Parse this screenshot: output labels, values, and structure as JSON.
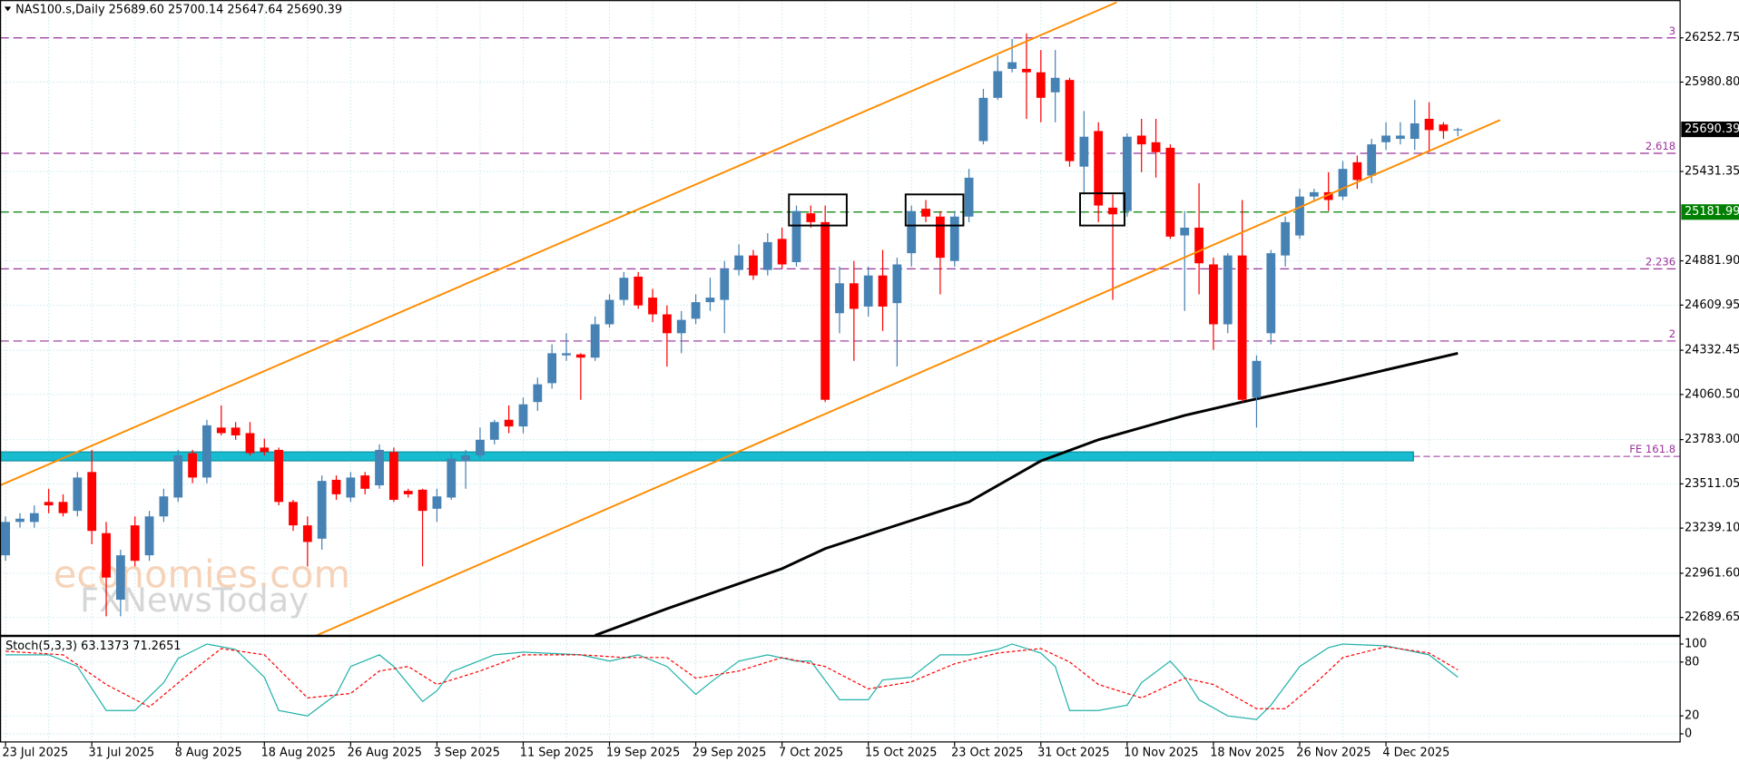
{
  "chart_data": [
    {
      "type": "candlestick",
      "title": "NAS100.s,Daily  25689.60 25700.14 25647.64 25690.39",
      "categories": [
        "23 Jul 2025",
        null,
        null,
        null,
        null,
        null,
        "31 Jul 2025",
        null,
        null,
        null,
        null,
        null,
        "8 Aug 2025",
        null,
        null,
        null,
        null,
        null,
        "18 Aug 2025",
        null,
        null,
        null,
        null,
        null,
        "26 Aug 2025",
        null,
        null,
        null,
        null,
        null,
        "3 Sep 2025",
        null,
        null,
        null,
        null,
        null,
        "11 Sep 2025",
        null,
        null,
        null,
        null,
        null,
        "19 Sep 2025",
        null,
        null,
        null,
        null,
        null,
        "29 Sep 2025",
        null,
        null,
        null,
        null,
        null,
        "7 Oct 2025",
        null,
        null,
        null,
        null,
        null,
        "15 Oct 2025",
        null,
        null,
        null,
        null,
        null,
        "23 Oct 2025",
        null,
        null,
        null,
        null,
        null,
        "31 Oct 2025",
        null,
        null,
        null,
        null,
        null,
        "10 Nov 2025",
        null,
        null,
        null,
        null,
        null,
        "18 Nov 2025",
        null,
        null,
        null,
        null,
        null,
        "26 Nov 2025",
        null,
        null,
        null,
        null,
        null,
        "4 Dec 2025",
        null,
        null,
        null,
        null,
        null
      ],
      "open": [
        23072,
        23277,
        23277,
        23400,
        23400,
        23345,
        23584,
        23208,
        22799,
        23256,
        23072,
        23311,
        23427,
        23700,
        23550,
        23857,
        23857,
        23823,
        23734,
        23720,
        23400,
        23256,
        23174,
        23536,
        23427,
        23563,
        23502,
        23707,
        23468,
        23475,
        23358,
        23427,
        23652,
        23686,
        23782,
        23905,
        23864,
        24014,
        24130,
        24301,
        24307,
        24287,
        24492,
        24642,
        24785,
        24656,
        24553,
        24437,
        24526,
        24628,
        24642,
        24826,
        24915,
        24826,
        25017,
        24874,
        25174,
        25120,
        24560,
        24744,
        24601,
        24792,
        24622,
        24929,
        25202,
        25154,
        24881,
        25154,
        25618,
        25884,
        26062,
        26062,
        26041,
        25918,
        25994,
        25461,
        25680,
        25209,
        25188,
        25652,
        25611,
        25577,
        25038,
        25086,
        24860,
        24492,
        24915,
        24041,
        24437,
        24915,
        25038,
        25277,
        25304,
        25277,
        25488,
        25406,
        25611,
        25632,
        25632,
        25755,
        25720,
        25689.6
      ],
      "high": [
        23311,
        23331,
        23379,
        23481,
        23447,
        23584,
        23720,
        23277,
        23106,
        23311,
        23345,
        23481,
        23720,
        23720,
        23905,
        23993,
        23891,
        23891,
        23789,
        23734,
        23413,
        23311,
        23563,
        23563,
        23584,
        23584,
        23754,
        23734,
        23481,
        23481,
        23481,
        23700,
        23720,
        23857,
        23905,
        23993,
        24041,
        24164,
        24369,
        24437,
        24314,
        24540,
        24676,
        24813,
        24813,
        24710,
        24608,
        24574,
        24676,
        24778,
        24881,
        24983,
        24949,
        25052,
        25086,
        25222,
        25222,
        25222,
        24847,
        24881,
        24847,
        24949,
        24901,
        25222,
        25256,
        25188,
        25188,
        25447,
        25939,
        26144,
        26246,
        26280,
        26178,
        26178,
        26007,
        25802,
        25734,
        25290,
        25666,
        25755,
        25755,
        25598,
        25188,
        25359,
        24901,
        24929,
        25256,
        24301,
        24949,
        25154,
        25325,
        25325,
        25427,
        25495,
        25529,
        25632,
        25734,
        25734,
        25871,
        25857,
        25734,
        25700.14
      ],
      "low": [
        23038,
        23242,
        23242,
        23331,
        23311,
        23311,
        23140,
        22697,
        22697,
        23004,
        23038,
        23277,
        23400,
        23515,
        23515,
        23809,
        23782,
        23686,
        23686,
        23379,
        23222,
        23004,
        23106,
        23413,
        23400,
        23447,
        23481,
        23400,
        23427,
        23004,
        23277,
        23413,
        23481,
        23666,
        23754,
        23823,
        23823,
        23959,
        24096,
        24267,
        24028,
        24267,
        24471,
        24608,
        24587,
        24505,
        24232,
        24314,
        24492,
        24574,
        24437,
        24792,
        24765,
        24792,
        24833,
        24847,
        25086,
        24014,
        24437,
        24267,
        24540,
        24451,
        24232,
        24847,
        25120,
        24676,
        24847,
        25120,
        25598,
        25871,
        26041,
        25755,
        25734,
        25734,
        25461,
        25290,
        25120,
        24642,
        25154,
        25427,
        25393,
        25017,
        24574,
        24676,
        24335,
        24437,
        24014,
        23857,
        24369,
        24847,
        25017,
        25256,
        25188,
        25256,
        25325,
        25359,
        25564,
        25598,
        25564,
        25550,
        25632,
        25647.64
      ],
      "close": [
        23277,
        23297,
        23331,
        23379,
        23331,
        23550,
        23222,
        22935,
        23072,
        23038,
        23311,
        23434,
        23686,
        23550,
        23871,
        23823,
        23809,
        23700,
        23707,
        23400,
        23256,
        23154,
        23529,
        23447,
        23550,
        23481,
        23720,
        23413,
        23447,
        23345,
        23434,
        23666,
        23686,
        23782,
        23891,
        23864,
        24000,
        24123,
        24314,
        24314,
        24287,
        24492,
        24642,
        24778,
        24608,
        24553,
        24437,
        24519,
        24628,
        24656,
        24833,
        24915,
        24792,
        24997,
        24860,
        25188,
        25120,
        24028,
        24744,
        24587,
        24792,
        24601,
        24860,
        25188,
        25154,
        24901,
        25154,
        25393,
        25884,
        26048,
        26103,
        26041,
        25884,
        26007,
        25495,
        25645,
        25222,
        25168,
        25645,
        25598,
        25550,
        25031,
        25086,
        24867,
        24492,
        24915,
        24028,
        24267,
        24929,
        25120,
        25277,
        25304,
        25256,
        25447,
        25379,
        25598,
        25652,
        25652,
        25727,
        25686,
        25680,
        25690.39
      ],
      "up_color": "#4682b4",
      "down_color": "#ff0000",
      "ylim": [
        22580,
        26485
      ],
      "yticks": [
        {
          "value": 22689.65,
          "label": "22689.65"
        },
        {
          "value": 22961.6,
          "label": "22961.60"
        },
        {
          "value": 23239.1,
          "label": "23239.10"
        },
        23511.05,
        {
          "value": 23783,
          "label": "23783.00"
        },
        {
          "value": 24060.5,
          "label": "24060.50"
        },
        24332.45,
        24609.95,
        {
          "value": 24881.9,
          "label": "24881.90"
        },
        25431.35,
        {
          "value": 25980.8,
          "label": "25980.80"
        },
        26252.75
      ],
      "grid": true,
      "ma": {
        "color": "#000000",
        "x": [
          41,
          46,
          54,
          57,
          61,
          67,
          72,
          76,
          82,
          86,
          92,
          101
        ],
        "values": [
          22580,
          22744,
          22990,
          23113,
          23229,
          23400,
          23652,
          23782,
          23932,
          24014,
          24130,
          24314
        ]
      },
      "levels": [
        {
          "value": 26252.75,
          "label": "3",
          "color": "#993399"
        },
        {
          "value": 25543,
          "label": "2.618",
          "color": "#993399"
        },
        {
          "value": 24833,
          "label": "2.236",
          "color": "#993399"
        },
        {
          "value": 24389,
          "label": "2",
          "color": "#993399"
        }
      ],
      "fe": {
        "value": 23680,
        "label": "FE 161.8",
        "color": "#17bcd0",
        "label_color": "#993399"
      },
      "price_labels": [
        {
          "value": 25690.39,
          "color": "#000000"
        },
        {
          "value": 25181.99,
          "color": "#008000"
        }
      ],
      "watermark": [
        "economies.com",
        "FXNewsToday"
      ]
    },
    {
      "type": "line",
      "title": "Stoch(5,3,3) 63.1373 71.2651",
      "ylim": [
        -9,
        106
      ],
      "yticks": [
        0,
        20,
        80,
        100
      ],
      "series": [
        {
          "color": "#20b2aa",
          "dash": false,
          "x": [
            0,
            3,
            5,
            7,
            9,
            11,
            12,
            14,
            16,
            18,
            19,
            21,
            23,
            24,
            26,
            27,
            29,
            30,
            31,
            34,
            36,
            40,
            42,
            44,
            46,
            48,
            49,
            51,
            53,
            55,
            56,
            58,
            60,
            61,
            63,
            65,
            67,
            69,
            70,
            72,
            73,
            74,
            76,
            78,
            79,
            81,
            82,
            83,
            85,
            87,
            88,
            90,
            92,
            93,
            96,
            99,
            101
          ],
          "values": [
            88,
            88,
            75,
            26,
            26,
            57,
            84,
            100,
            94,
            63,
            26,
            20,
            44,
            75,
            88,
            75,
            36,
            48,
            69,
            88,
            91,
            88,
            81,
            88,
            75,
            44,
            57,
            81,
            88,
            81,
            81,
            38,
            38,
            60,
            63,
            88,
            88,
            94,
            100,
            90,
            75,
            26,
            26,
            32,
            57,
            81,
            63,
            38,
            20,
            16,
            32,
            75,
            96,
            100,
            98,
            88,
            63.1373
          ]
        },
        {
          "color": "#ff0000",
          "dash": true,
          "x": [
            0,
            4,
            7,
            10,
            13,
            15,
            18,
            21,
            24,
            26,
            28,
            30,
            33,
            36,
            40,
            43,
            46,
            48,
            51,
            54,
            57,
            60,
            63,
            66,
            69,
            72,
            74,
            76,
            79,
            82,
            84,
            87,
            89,
            91,
            93,
            96,
            99,
            101
          ],
          "values": [
            92,
            88,
            55,
            30,
            70,
            95,
            88,
            40,
            45,
            70,
            75,
            55,
            70,
            88,
            88,
            85,
            85,
            62,
            70,
            85,
            75,
            50,
            58,
            78,
            90,
            95,
            80,
            55,
            40,
            62,
            55,
            28,
            28,
            55,
            85,
            97,
            90,
            71.2651
          ]
        }
      ]
    }
  ]
}
